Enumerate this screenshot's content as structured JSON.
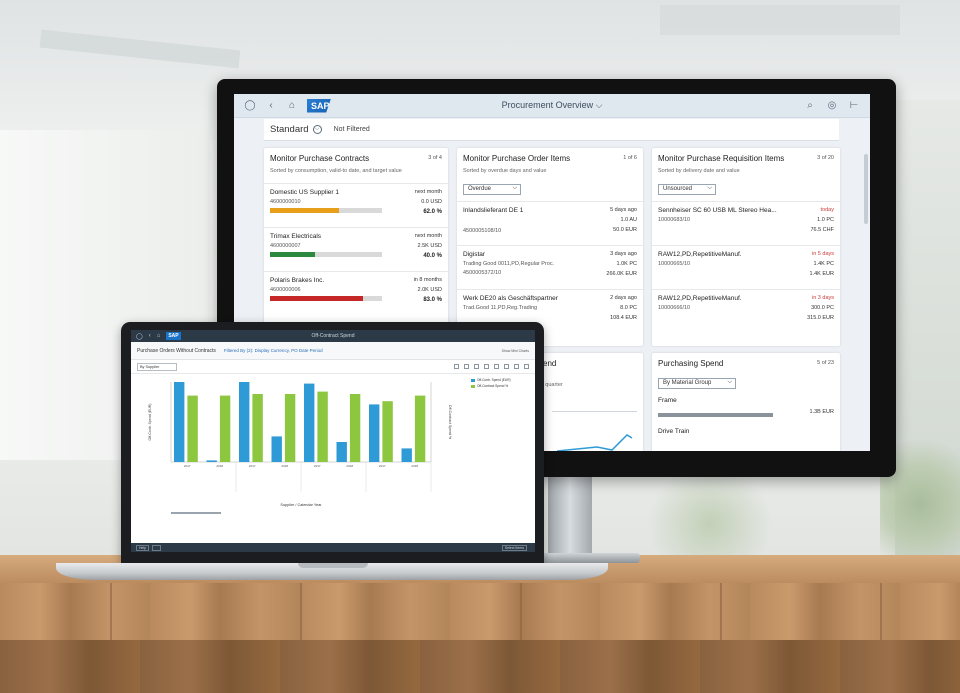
{
  "monitor": {
    "shell": {
      "logo": "SAP",
      "title": "Procurement Overview",
      "icons": [
        "user-icon",
        "back-icon",
        "home-icon",
        "search-icon",
        "notifications-icon",
        "menu-icon"
      ]
    },
    "filter_bar": {
      "variant": "Standard",
      "filter_status": "Not Filtered"
    },
    "cards": {
      "contracts": {
        "title": "Monitor Purchase Contracts",
        "count": "3 of 4",
        "subtitle": "Sorted by consumption, valid-to date, and target value",
        "items": [
          {
            "name": "Domestic US Supplier 1",
            "id": "4600000010",
            "when": "next month",
            "amount": "0.0 USD",
            "percent": "62.0 %",
            "progress": 0.62,
            "color": "#e8a01b"
          },
          {
            "name": "Trimax Electricals",
            "id": "4600000007",
            "when": "next month",
            "amount": "2.5K USD",
            "percent": "40.0 %",
            "progress": 0.4,
            "color": "#2b8a3e"
          },
          {
            "name": "Polaris Brakes Inc.",
            "id": "4600000006",
            "when": "in 8 months",
            "amount": "2.0K USD",
            "percent": "83.0 %",
            "progress": 0.83,
            "color": "#c62828"
          }
        ]
      },
      "order_items": {
        "title": "Monitor Purchase Order Items",
        "count": "1 of 6",
        "subtitle": "Sorted by overdue days and value",
        "select": "Overdue",
        "items": [
          {
            "name": "Inlandslieferant DE 1",
            "desc": "",
            "id": "4500005108/10",
            "when": "5 days ago",
            "qty": "1.0 AU",
            "value": "50.0 EUR"
          },
          {
            "name": "Digistar",
            "desc": "Trading Good 0011,PD,Regular Proc.",
            "id": "4500005372/10",
            "when": "3 days ago",
            "qty": "1.0K PC",
            "value": "266.0K EUR"
          },
          {
            "name": "Werk DE20 als Geschäftspartner",
            "desc": "Trad.Good 11,PD,Reg.Trading",
            "id": "",
            "when": "2 days ago",
            "qty": "8.0 PC",
            "value": "108.4 EUR"
          }
        ]
      },
      "requisition_items": {
        "title": "Monitor Purchase Requisition Items",
        "count": "3 of 20",
        "subtitle": "Sorted by delivery date and value",
        "select": "Unsourced",
        "items": [
          {
            "name": "Sennheiser SC 60 USB ML Stereo Hea...",
            "id": "10000683/10",
            "when": "today",
            "qty": "1.0 PC",
            "value": "76.5 CHF"
          },
          {
            "name": "RAW12,PD,RepetitiveManuf.",
            "id": "10000665/10",
            "when": "in 5 days",
            "qty": "1.4K PC",
            "value": "1.4K EUR"
          },
          {
            "name": "RAW12,PD,RepetitiveManuf.",
            "id": "10000666/10",
            "when": "in 3 days",
            "qty": "300.0 PC",
            "value": "315.0 EUR"
          }
        ]
      },
      "partial": {
        "title_fragment": "end",
        "subtitle_fragment": "y quarter"
      },
      "spend": {
        "title": "Purchasing Spend",
        "count": "5 of 23",
        "select": "By Material Group",
        "items": [
          {
            "label": "Frame",
            "value": "1.3B EUR"
          },
          {
            "label": "Drive Train",
            "value": ""
          }
        ]
      }
    }
  },
  "laptop": {
    "shell": {
      "logo": "SAP",
      "title": "Off-Contract Spend"
    },
    "header": {
      "title": "Purchase Orders Without Contracts",
      "filter": "Filtered By (2): Display Currency, PO Date Period",
      "right": "Show Mini Charts"
    },
    "toolbar": {
      "dropdown": "By Supplier"
    },
    "footer": {
      "left": [
        "Help",
        ""
      ],
      "right": "Select Items"
    },
    "legend": [
      {
        "label": "Off-Contr. Spend (EUR)",
        "color": "#2e9bd6"
      },
      {
        "label": "Off-Contract Spend %",
        "color": "#8dc63f"
      }
    ],
    "x_label": "Supplier / Calendar Year"
  },
  "chart_data": {
    "type": "bar",
    "xlabel": "Supplier / Calendar Year",
    "ylabel": "Off-Contr. Spend (EUR)",
    "y2label": "Off-Contract Spend %",
    "series": [
      {
        "name": "Off-Contr. Spend (EUR)",
        "color": "#2e9bd6",
        "values": [
          100,
          2,
          100,
          32,
          98,
          25,
          72,
          17
        ]
      },
      {
        "name": "Off-Contract Spend %",
        "color": "#8dc63f",
        "values": [
          83,
          83,
          85,
          85,
          88,
          85,
          76,
          83
        ]
      }
    ],
    "point_labels": [
      "2017",
      "2018",
      "2017",
      "2018",
      "2017",
      "2018",
      "2017",
      "2018"
    ]
  }
}
